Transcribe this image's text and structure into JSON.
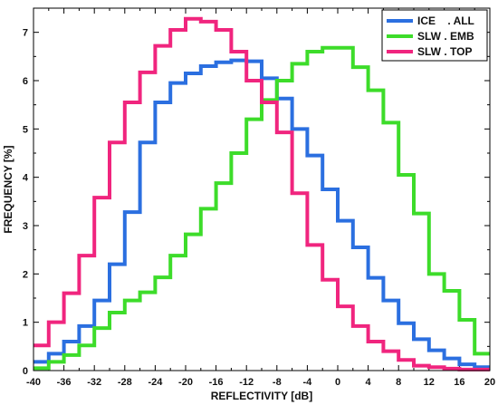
{
  "chart_data": {
    "type": "line",
    "step": true,
    "title": "",
    "xlabel": "REFLECTIVITY  [dB]",
    "ylabel": "FREQUENCY  [%]",
    "xlim": [
      -40,
      20
    ],
    "ylim": [
      0,
      7.5
    ],
    "xticks": [
      -40,
      -36,
      -32,
      -28,
      -24,
      -20,
      -16,
      -12,
      -8,
      -4,
      0,
      4,
      8,
      12,
      16,
      20
    ],
    "yticks": [
      0,
      1,
      2,
      3,
      4,
      5,
      6,
      7
    ],
    "grid": false,
    "legend_position": "top-right",
    "bin_edges": [
      -40,
      -38,
      -36,
      -34,
      -32,
      -30,
      -28,
      -26,
      -24,
      -22,
      -20,
      -18,
      -16,
      -14,
      -12,
      -10,
      -8,
      -6,
      -4,
      -2,
      0,
      2,
      4,
      6,
      8,
      10,
      12,
      14,
      16,
      18,
      20
    ],
    "series": [
      {
        "name": "ICE    . ALL",
        "color": "#2b6fe0",
        "values": [
          0.18,
          0.35,
          0.6,
          0.92,
          1.45,
          2.2,
          3.28,
          4.72,
          5.55,
          5.95,
          6.15,
          6.3,
          6.38,
          6.42,
          6.4,
          6.05,
          5.63,
          5.0,
          4.45,
          3.75,
          3.1,
          2.55,
          1.92,
          1.45,
          0.98,
          0.65,
          0.42,
          0.25,
          0.13,
          0.07
        ]
      },
      {
        "name": "SLW . EMB",
        "color": "#3ddc2a",
        "values": [
          0.05,
          0.18,
          0.32,
          0.52,
          0.88,
          1.2,
          1.45,
          1.62,
          1.93,
          2.38,
          2.82,
          3.35,
          3.88,
          4.5,
          5.2,
          5.6,
          6.0,
          6.35,
          6.6,
          6.68,
          6.68,
          6.28,
          5.8,
          5.13,
          4.05,
          3.25,
          2.0,
          1.65,
          1.05,
          0.35
        ]
      },
      {
        "name": "SLW . TOP",
        "color": "#f0257e",
        "values": [
          0.52,
          1.0,
          1.6,
          2.38,
          3.58,
          4.72,
          5.55,
          6.17,
          6.72,
          7.05,
          7.28,
          7.22,
          7.05,
          6.6,
          6.0,
          5.55,
          4.93,
          3.67,
          2.6,
          1.88,
          1.33,
          0.92,
          0.6,
          0.4,
          0.22,
          0.1,
          0.07,
          0.04,
          0.02,
          0.02
        ]
      }
    ]
  }
}
